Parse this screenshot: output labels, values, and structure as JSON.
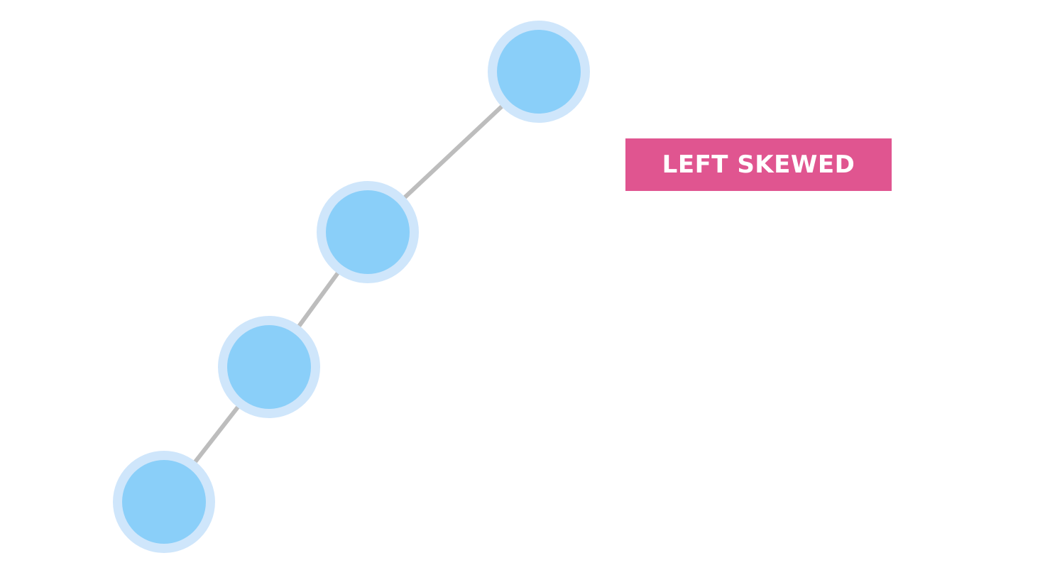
{
  "label": {
    "text": "LEFT SKEWED",
    "background_color": "#e05590",
    "text_color": "#ffffff"
  },
  "tree": {
    "structure": "left-skewed",
    "node_count": 4,
    "node_fill_color": "#8acff9",
    "node_ring_color": "#cfe6fb",
    "edge_color": "#bdbdbd"
  }
}
